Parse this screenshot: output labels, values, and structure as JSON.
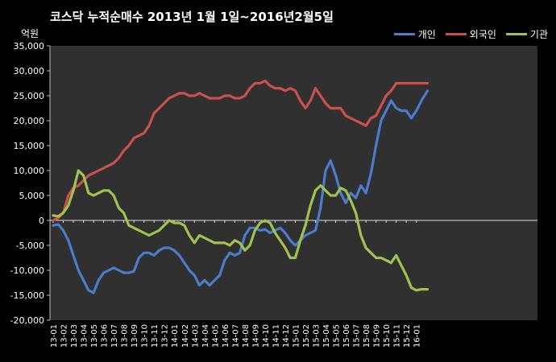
{
  "chart_data": {
    "type": "line",
    "title": "코스닥 누적순매수 2013년 1월 1일~2016년2월5일",
    "unit": "억원",
    "ylim": [
      -20000,
      35000
    ],
    "y_ticks": [
      -20000,
      -15000,
      -10000,
      -5000,
      0,
      5000,
      10000,
      15000,
      20000,
      25000,
      30000,
      35000
    ],
    "y_tick_labels": [
      "-20,000",
      "-15,000",
      "-10,000",
      "-5,000",
      "0",
      "5,000",
      "10,000",
      "15,000",
      "20,000",
      "25,000",
      "30,000",
      "35,000"
    ],
    "x_tick_labels": [
      "13-01",
      "13-02",
      "13-03",
      "13-04",
      "13-05",
      "13-06",
      "13-07",
      "13-08",
      "13-09",
      "13-10",
      "13-11",
      "13-12",
      "14-01",
      "14-02",
      "14-03",
      "14-04",
      "14-05",
      "14-06",
      "14-07",
      "14-08",
      "14-09",
      "14-10",
      "14-11",
      "14-12",
      "15-01",
      "15-02",
      "15-03",
      "15-04",
      "15-05",
      "15-06",
      "15-07",
      "15-08",
      "15-09",
      "15-10",
      "15-11",
      "15-12",
      "16-01"
    ],
    "legend_position": "top-right",
    "grid": false,
    "x": [
      0,
      0.5,
      1,
      1.5,
      2,
      2.5,
      3,
      3.5,
      4,
      4.5,
      5,
      5.5,
      6,
      6.5,
      7,
      7.5,
      8,
      8.5,
      9,
      9.5,
      10,
      10.5,
      11,
      11.5,
      12,
      12.5,
      13,
      13.5,
      14,
      14.5,
      15,
      15.5,
      16,
      16.5,
      17,
      17.5,
      18,
      18.5,
      19,
      19.5,
      20,
      20.5,
      21,
      21.5,
      22,
      22.5,
      23,
      23.5,
      24,
      24.5,
      25,
      25.5,
      26,
      26.5,
      27,
      27.5,
      28,
      28.5,
      29,
      29.5,
      30,
      30.5,
      31,
      31.5,
      32,
      32.5,
      33,
      33.5,
      34,
      34.5,
      35,
      35.5,
      36,
      36.5,
      37.1
    ],
    "series": [
      {
        "name": "개인",
        "color": "#4a7cc9",
        "values": [
          -1000,
          -800,
          -2000,
          -4000,
          -7000,
          -10000,
          -12000,
          -14000,
          -14500,
          -12000,
          -10500,
          -10000,
          -9500,
          -10000,
          -10500,
          -10500,
          -10200,
          -7500,
          -6500,
          -6500,
          -7000,
          -6000,
          -5500,
          -5500,
          -6000,
          -7000,
          -8500,
          -10000,
          -11000,
          -13000,
          -12000,
          -13000,
          -12000,
          -11000,
          -8000,
          -6500,
          -7000,
          -6500,
          -3000,
          -1500,
          -1500,
          -2000,
          -1800,
          -2500,
          -2000,
          -1500,
          -2500,
          -4000,
          -5000,
          -4000,
          -3000,
          -2500,
          -2000,
          2500,
          10000,
          12000,
          9000,
          5500,
          3500,
          5500,
          4500,
          7000,
          5500,
          9500,
          15000,
          20000,
          22000,
          24000,
          22500,
          22000,
          22000,
          20500,
          22000,
          24000,
          26000
        ]
      },
      {
        "name": "외국인",
        "color": "#c9504c",
        "values": [
          0,
          500,
          1500,
          5000,
          6500,
          7000,
          8000,
          9000,
          9500,
          10000,
          10500,
          11000,
          11500,
          12500,
          14000,
          15000,
          16500,
          17000,
          17500,
          19000,
          21500,
          22500,
          23500,
          24500,
          25000,
          25500,
          25500,
          25000,
          25000,
          25500,
          25000,
          24500,
          24500,
          24500,
          25000,
          25000,
          24500,
          24500,
          25000,
          26500,
          27500,
          27500,
          28000,
          27000,
          26500,
          26500,
          26000,
          26500,
          26000,
          24000,
          22500,
          24000,
          26500,
          25000,
          23500,
          22500,
          22500,
          22500,
          21000,
          20500,
          20000,
          19500,
          19000,
          20500,
          21000,
          23000,
          25000,
          26000,
          27500,
          27500,
          27500,
          27500,
          27500,
          27500,
          27500
        ]
      },
      {
        "name": "기관",
        "color": "#9fc34e",
        "values": [
          1000,
          800,
          1500,
          3000,
          6000,
          10000,
          9000,
          5500,
          5000,
          5500,
          6000,
          6000,
          5000,
          2500,
          1500,
          -1000,
          -1500,
          -2000,
          -2500,
          -3000,
          -2500,
          -2000,
          -1000,
          0,
          -500,
          -500,
          -1000,
          -3000,
          -4500,
          -3000,
          -3500,
          -4000,
          -4500,
          -4500,
          -4500,
          -5000,
          -4000,
          -4500,
          -6000,
          -5000,
          -2000,
          -500,
          0,
          -500,
          -2500,
          -4000,
          -5500,
          -7500,
          -7500,
          -4000,
          -1000,
          3000,
          6000,
          7000,
          6000,
          5000,
          5000,
          6500,
          6000,
          4000,
          1500,
          -3000,
          -5500,
          -6500,
          -7500,
          -7500,
          -8000,
          -8500,
          -7000,
          -9000,
          -11000,
          -13500,
          -14000,
          -13800,
          -13800
        ]
      }
    ]
  }
}
